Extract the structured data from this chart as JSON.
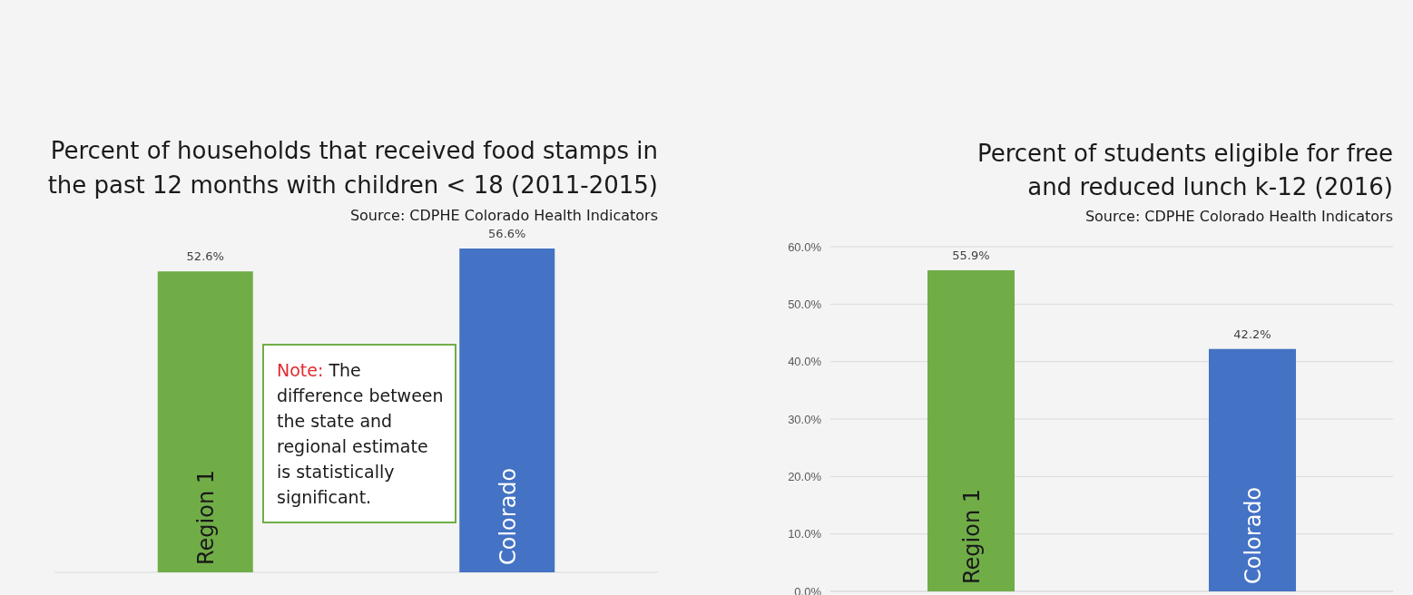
{
  "chart_data": [
    {
      "type": "bar",
      "title": "Percent of households that received food stamps in the past 12 months with children < 18 (2011-2015)",
      "annotations": [
        "Source: CDPHE Colorado Health Indicators",
        "Note:",
        "The difference between the state and regional estimate is statistically significant."
      ],
      "categories": [
        "Region 1",
        "Colorado"
      ],
      "values": [
        52.6,
        56.6
      ],
      "value_labels": [
        "52.6%",
        "56.6%"
      ],
      "colors": [
        "#70ad47",
        "#4472c4"
      ],
      "tick_labels": "x"
    },
    {
      "type": "bar",
      "title": "Percent of students eligible for free and reduced lunch k-12 (2016)",
      "annotations": [
        "Source: CDPHE Colorado Health Indicators"
      ],
      "categories": [
        "Region 1",
        "Colorado"
      ],
      "values": [
        55.9,
        42.2
      ],
      "colors": [
        "#70ad47",
        "#4472c4"
      ],
      "ylim": [
        0,
        60
      ],
      "yticks": [
        {
          "value": 0,
          "label": "0.0%"
        },
        {
          "value": 10,
          "label": "10.0%"
        },
        {
          "value": 20,
          "label": "20.0%"
        },
        {
          "value": 30,
          "label": "30.0%"
        },
        {
          "value": 40,
          "label": "40.0%"
        },
        {
          "value": 50,
          "label": "50.0%"
        },
        {
          "value": 60,
          "label": "60.0%"
        }
      ],
      "grid": "y",
      "value_labels": [
        "55.9%",
        "42.2%"
      ]
    }
  ]
}
